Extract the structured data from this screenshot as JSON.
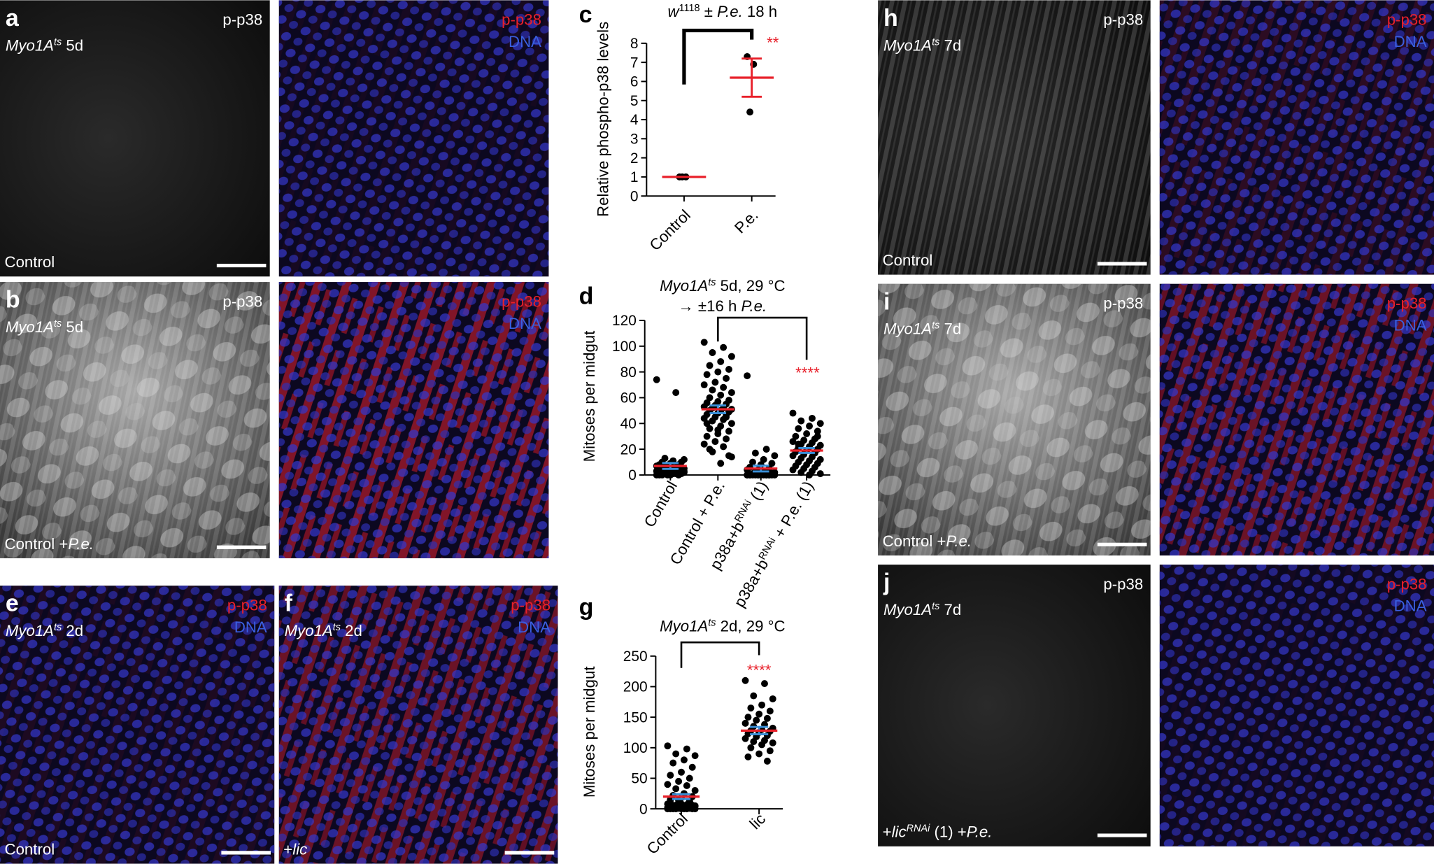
{
  "images": [
    {
      "letter": "a",
      "stain": "p-p38",
      "merge": {
        "red": "p-p38",
        "blue": "DNA"
      },
      "genotype": [
        {
          "text": "Myo1A",
          "italic": true
        },
        {
          "text": "ts",
          "italic": true,
          "sup": true
        },
        {
          "text": " 5d"
        }
      ],
      "condition": [
        {
          "text": "Control"
        }
      ]
    },
    {
      "letter": "b",
      "stain": "p-p38",
      "merge": {
        "red": "p-p38",
        "blue": "DNA"
      },
      "genotype": [
        {
          "text": "Myo1A",
          "italic": true
        },
        {
          "text": "ts",
          "italic": true,
          "sup": true
        },
        {
          "text": " 5d"
        }
      ],
      "condition": [
        {
          "text": "Control +"
        },
        {
          "text": "P.e.",
          "italic": true
        }
      ]
    },
    {
      "letter": "e",
      "merge": {
        "red": "p-p38",
        "blue": "DNA"
      },
      "genotype": [
        {
          "text": "Myo1A",
          "italic": true
        },
        {
          "text": "ts",
          "italic": true,
          "sup": true
        },
        {
          "text": " 2d"
        }
      ],
      "condition": [
        {
          "text": "Control"
        }
      ]
    },
    {
      "letter": "f",
      "merge": {
        "red": "p-p38",
        "blue": "DNA"
      },
      "genotype": [
        {
          "text": "Myo1A",
          "italic": true
        },
        {
          "text": "ts",
          "italic": true,
          "sup": true
        },
        {
          "text": " 2d"
        }
      ],
      "condition": [
        {
          "text": "+"
        },
        {
          "text": "lic",
          "italic": true
        }
      ]
    },
    {
      "letter": "h",
      "stain": "p-p38",
      "merge": {
        "red": "p-p38",
        "blue": "DNA"
      },
      "genotype": [
        {
          "text": "Myo1A",
          "italic": true
        },
        {
          "text": "ts",
          "italic": true,
          "sup": true
        },
        {
          "text": " 7d"
        }
      ],
      "condition": [
        {
          "text": "Control"
        }
      ]
    },
    {
      "letter": "i",
      "stain": "p-p38",
      "merge": {
        "red": "p-p38",
        "blue": "DNA"
      },
      "genotype": [
        {
          "text": "Myo1A",
          "italic": true
        },
        {
          "text": "ts",
          "italic": true,
          "sup": true
        },
        {
          "text": " 7d"
        }
      ],
      "condition": [
        {
          "text": "Control +"
        },
        {
          "text": "P.e.",
          "italic": true
        }
      ]
    },
    {
      "letter": "j",
      "stain": "p-p38",
      "merge": {
        "red": "p-p38",
        "blue": "DNA"
      },
      "genotype": [
        {
          "text": "Myo1A",
          "italic": true
        },
        {
          "text": "ts",
          "italic": true,
          "sup": true
        },
        {
          "text": " 7d"
        }
      ],
      "condition": [
        {
          "text": "+"
        },
        {
          "text": "lic",
          "italic": true
        },
        {
          "text": "RNAi",
          "italic": true,
          "sup": true
        },
        {
          "text": " (1) +"
        },
        {
          "text": "P.e.",
          "italic": true
        }
      ]
    }
  ],
  "chart_data": [
    {
      "type": "dotplot",
      "letter": "c",
      "title": [
        {
          "text": "w",
          "italic": true
        },
        {
          "text": "1118",
          "sup": true
        },
        {
          "text": " ± "
        },
        {
          "text": "P.e.",
          "italic": true
        },
        {
          "text": " 18 h"
        }
      ],
      "ylabel": "Relative phospho-p38 levels",
      "categories": [
        [
          {
            "text": "Control"
          }
        ],
        [
          {
            "text": "P.e."
          }
        ]
      ],
      "values": [
        [
          1,
          1,
          1
        ],
        [
          7.3,
          6.9,
          4.4
        ]
      ],
      "means": [
        1,
        6.2
      ],
      "sems": [
        0,
        1.0
      ],
      "point_color": "#000000",
      "mean_color": "#e8202a",
      "error_color": "#e8202a",
      "ylim": [
        0,
        8
      ],
      "yticks": [
        0,
        1,
        2,
        3,
        4,
        5,
        6,
        7,
        8
      ],
      "significance": {
        "text": "**",
        "categories": [
          0,
          1
        ],
        "color": "#e8202a"
      }
    },
    {
      "type": "dotplot",
      "letter": "d",
      "title": [
        {
          "text": "Myo1A",
          "italic": true
        },
        {
          "text": "ts",
          "italic": true,
          "sup": true
        },
        {
          "text": " 5d, 29 °C"
        }
      ],
      "subtitle": [
        {
          "text": "→ ±16 h "
        },
        {
          "text": "P.e.",
          "italic": true
        }
      ],
      "ylabel": "Mitoses per midgut",
      "categories": [
        [
          {
            "text": "Control"
          }
        ],
        [
          {
            "text": "Control + P.e."
          }
        ],
        [
          {
            "text": "p38a+b"
          },
          {
            "text": "RNAi",
            "sup": true
          },
          {
            "text": " (1)"
          }
        ],
        [
          {
            "text": "p38a+b"
          },
          {
            "text": "RNAi",
            "sup": true
          },
          {
            "text": " + P.e. (1)"
          }
        ]
      ],
      "values": [
        [
          74,
          64,
          13,
          12,
          11,
          10,
          10,
          9,
          8,
          8,
          7,
          7,
          6,
          6,
          5,
          5,
          5,
          4,
          4,
          4,
          3,
          3,
          3,
          2,
          2,
          2,
          1,
          1,
          1,
          0,
          0,
          0,
          0,
          0,
          1,
          2,
          3,
          1,
          0,
          2
        ],
        [
          103,
          99,
          95,
          92,
          88,
          85,
          82,
          80,
          78,
          75,
          72,
          70,
          68,
          66,
          64,
          62,
          60,
          58,
          57,
          56,
          55,
          54,
          53,
          52,
          52,
          51,
          50,
          50,
          49,
          48,
          47,
          46,
          45,
          44,
          43,
          42,
          40,
          38,
          36,
          34,
          32,
          30,
          28,
          26,
          24,
          22,
          18,
          14,
          9,
          20,
          15,
          35,
          40,
          45
        ],
        [
          77,
          20,
          17,
          15,
          12,
          10,
          9,
          8,
          6,
          5,
          4,
          4,
          3,
          3,
          2,
          2,
          1,
          1,
          1,
          0,
          0,
          0,
          0,
          0,
          0,
          0,
          0,
          0,
          0,
          0,
          0,
          0,
          0,
          0,
          0
        ],
        [
          48,
          44,
          42,
          40,
          38,
          36,
          34,
          32,
          30,
          28,
          27,
          26,
          25,
          24,
          23,
          22,
          21,
          20,
          19,
          18,
          17,
          16,
          15,
          14,
          13,
          12,
          11,
          10,
          9,
          8,
          7,
          6,
          5,
          4,
          3,
          2,
          1,
          0,
          24,
          30
        ]
      ],
      "means": [
        7,
        51,
        5,
        19
      ],
      "sems": [
        2.3,
        3.0,
        2.3,
        1.9
      ],
      "point_color": "#000000",
      "mean_color": "#e8202a",
      "error_color": "#3a8fd8",
      "ylim": [
        0,
        120
      ],
      "yticks": [
        0,
        20,
        40,
        60,
        80,
        100,
        120
      ],
      "significance": {
        "text": "****",
        "categories": [
          1,
          3
        ],
        "color": "#e8202a"
      }
    },
    {
      "type": "dotplot",
      "letter": "g",
      "title": [
        {
          "text": "Myo1A",
          "italic": true
        },
        {
          "text": "ts",
          "italic": true,
          "sup": true
        },
        {
          "text": " 2d, 29 °C"
        }
      ],
      "ylabel": "Mitoses per midgut",
      "categories": [
        [
          {
            "text": "Control"
          }
        ],
        [
          {
            "text": "lic"
          }
        ]
      ],
      "values": [
        [
          103,
          98,
          90,
          87,
          80,
          75,
          68,
          60,
          55,
          50,
          45,
          40,
          38,
          33,
          30,
          25,
          22,
          20,
          18,
          15,
          12,
          10,
          8,
          7,
          6,
          5,
          4,
          3,
          3,
          2,
          2,
          1,
          1,
          0,
          0,
          0,
          0,
          0,
          0,
          0,
          0,
          0,
          1,
          1,
          2,
          2,
          3,
          4,
          5,
          5,
          6,
          8,
          10,
          12,
          14
        ],
        [
          210,
          205,
          185,
          180,
          170,
          165,
          160,
          155,
          150,
          148,
          145,
          140,
          138,
          135,
          132,
          130,
          128,
          127,
          125,
          123,
          120,
          118,
          115,
          112,
          110,
          108,
          105,
          100,
          95,
          90,
          85,
          78
        ]
      ],
      "means": [
        20,
        128
      ],
      "sems": [
        4,
        6
      ],
      "point_color": "#000000",
      "mean_color": "#e8202a",
      "error_color": "#3a8fd8",
      "ylim": [
        0,
        250
      ],
      "yticks": [
        0,
        50,
        100,
        150,
        200,
        250
      ],
      "significance": {
        "text": "****",
        "categories": [
          0,
          1
        ],
        "color": "#e8202a"
      }
    }
  ]
}
